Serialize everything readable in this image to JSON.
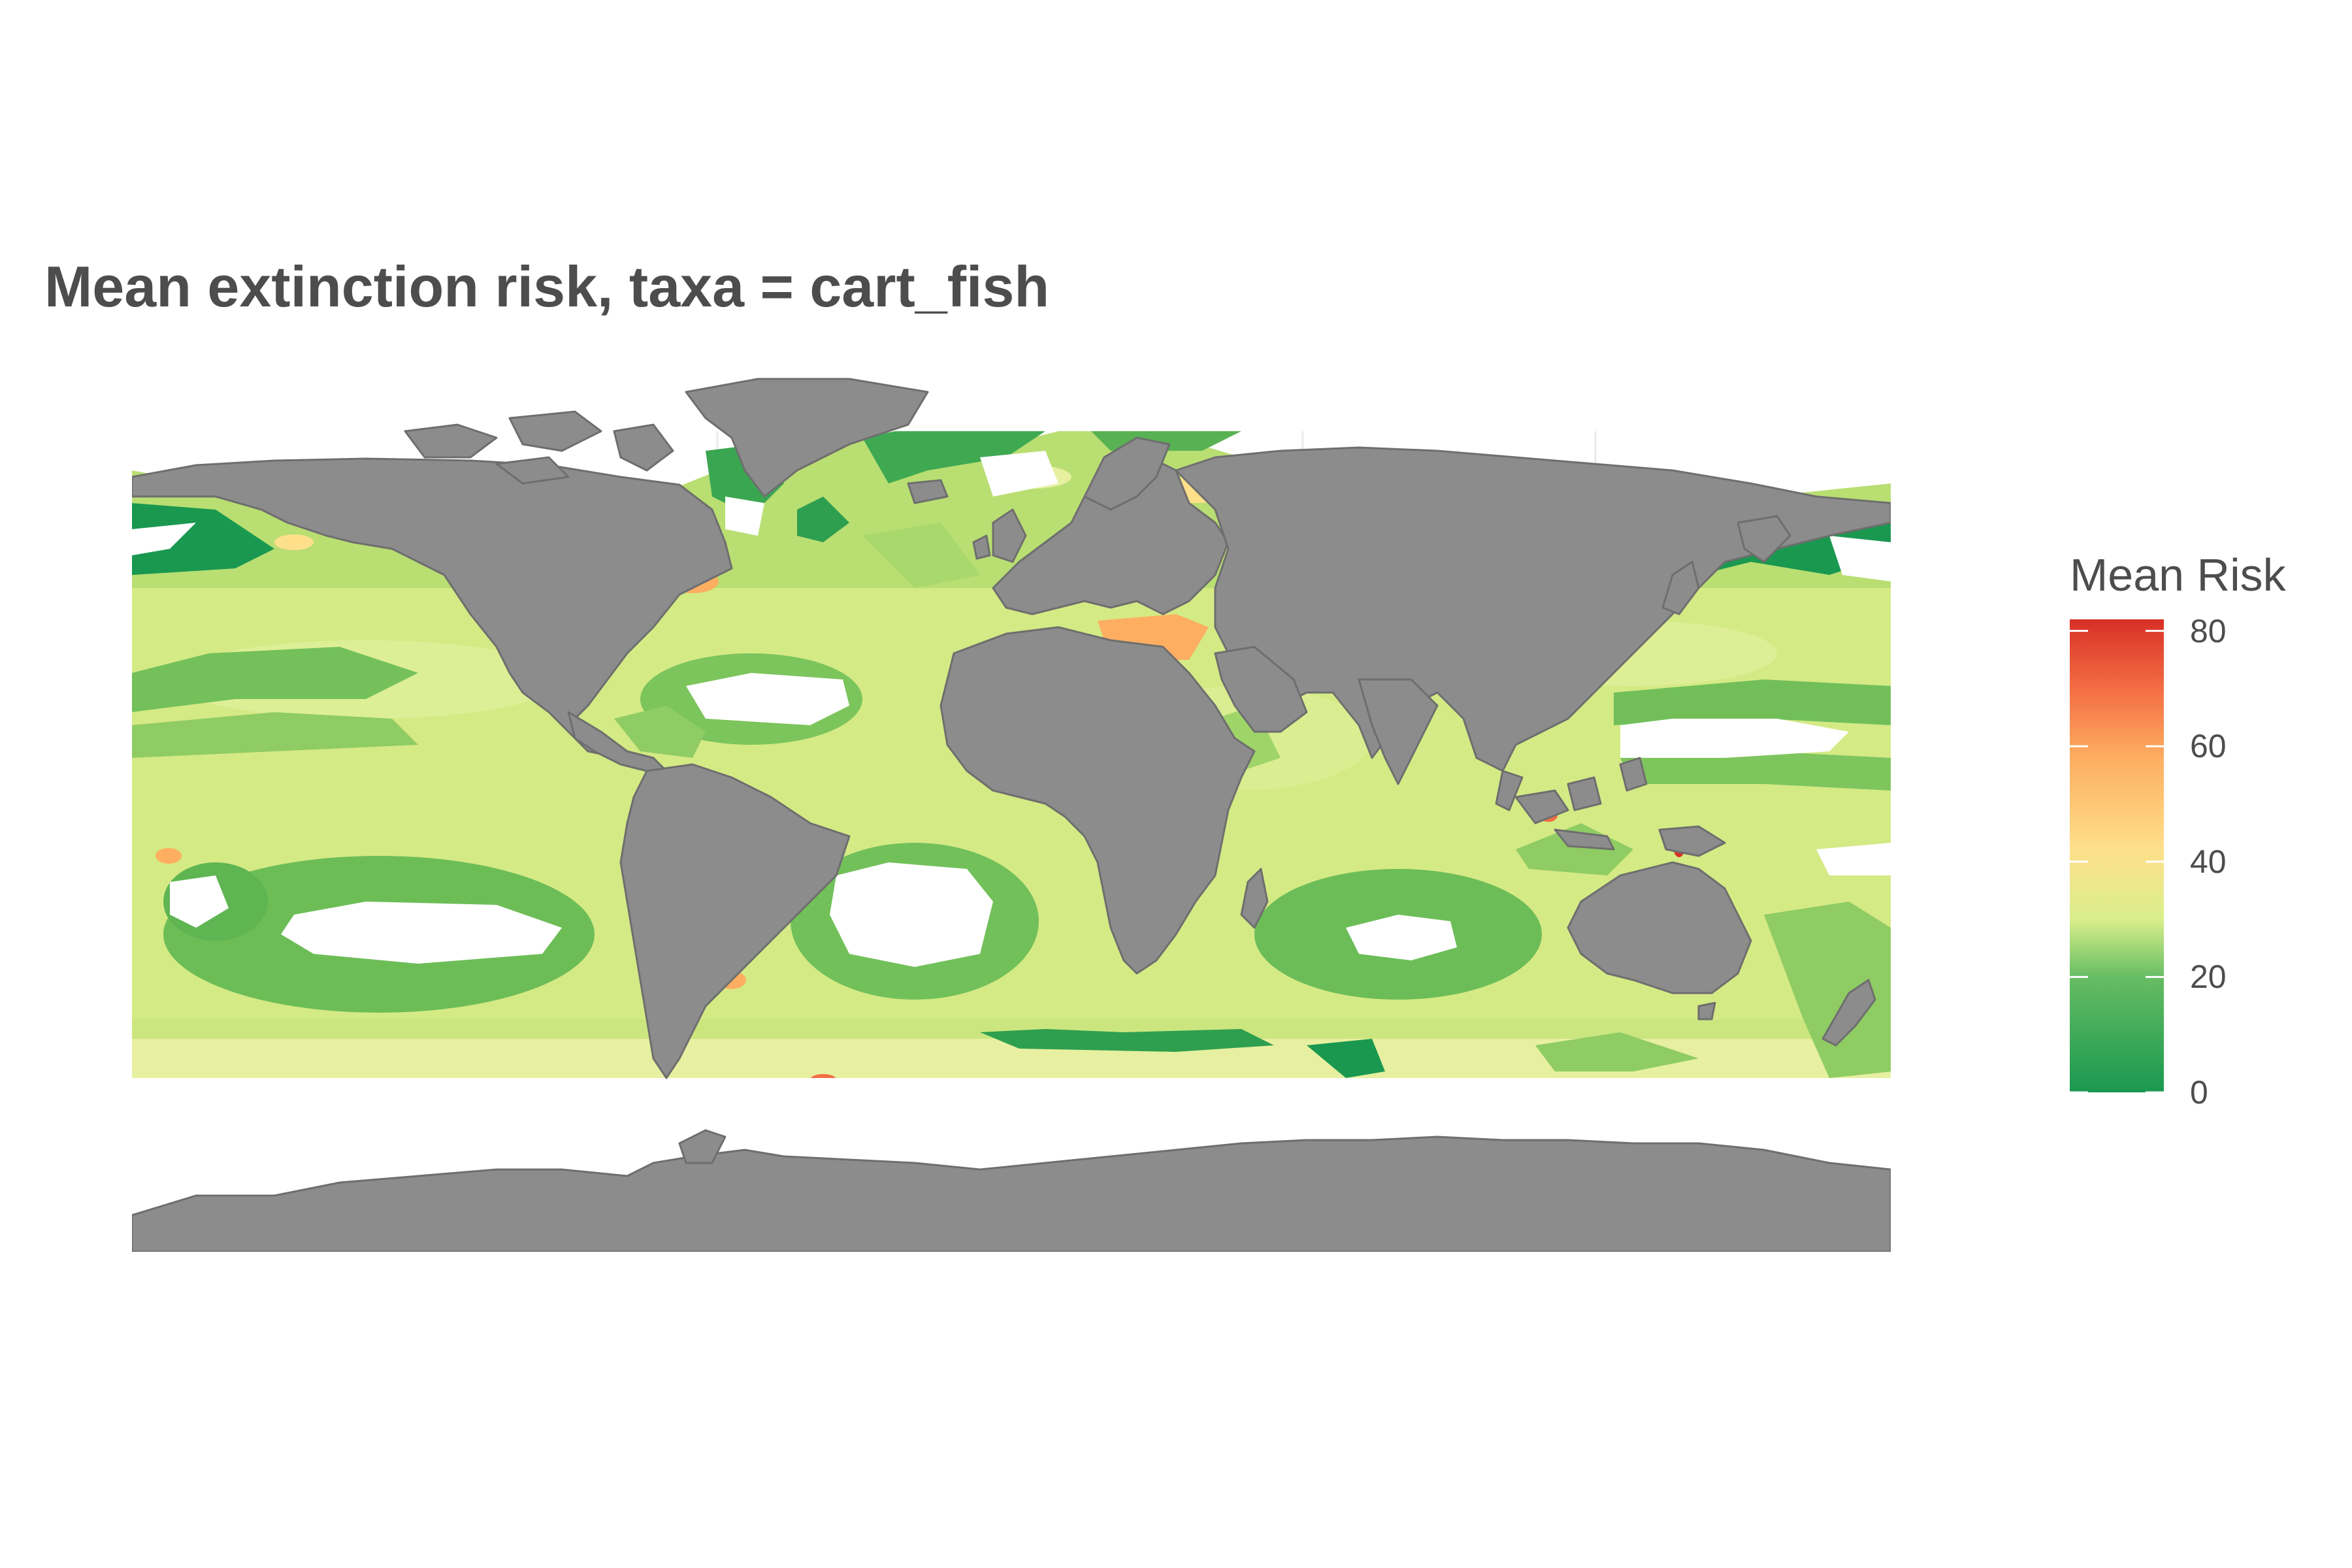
{
  "title": "Mean extinction risk, taxa = cart_fish",
  "colors": {
    "land": "#8c8c8c",
    "land_border": "#6e6e6e",
    "no_data": "#ffffff",
    "grid": "#ebebeb",
    "text": "#4d4d4d"
  },
  "legend": {
    "title": "Mean Risk",
    "min": 0,
    "max": 82,
    "ticks": [
      {
        "label": "80",
        "value": 80
      },
      {
        "label": "60",
        "value": 60
      },
      {
        "label": "40",
        "value": 40
      },
      {
        "label": "20",
        "value": 20
      },
      {
        "label": "0",
        "value": 0
      }
    ],
    "gradient": [
      {
        "value": 0,
        "color": "#1a9850"
      },
      {
        "value": 20,
        "color": "#66bd63"
      },
      {
        "value": 30,
        "color": "#d9ef8b"
      },
      {
        "value": 42,
        "color": "#fee08b"
      },
      {
        "value": 58,
        "color": "#fdae61"
      },
      {
        "value": 70,
        "color": "#f46d43"
      },
      {
        "value": 82,
        "color": "#d73027"
      }
    ]
  }
}
